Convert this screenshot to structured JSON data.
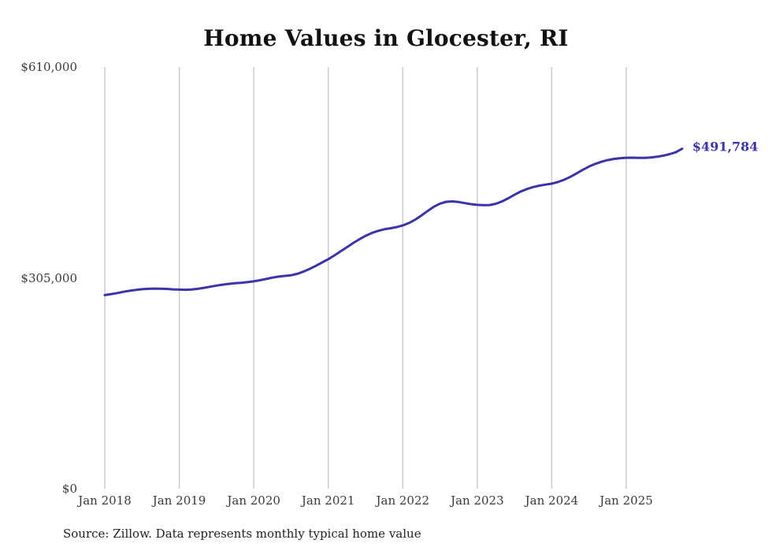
{
  "title": "Home Values in Glocester, RI",
  "source_note": "Source: Zillow. Data represents monthly typical home value",
  "end_label": "$491,784",
  "chart_data": {
    "type": "line",
    "title": "Home Values in Glocester, RI",
    "x_start": "2018-01",
    "x_interval": "month",
    "values": [
      280000,
      281500,
      283000,
      284800,
      286300,
      287600,
      288600,
      289200,
      289500,
      289400,
      289000,
      288400,
      288000,
      287800,
      288200,
      289200,
      290600,
      292200,
      293800,
      295200,
      296300,
      297200,
      297900,
      298800,
      300000,
      301600,
      303400,
      305300,
      306800,
      307800,
      308800,
      310800,
      314000,
      318000,
      322500,
      327200,
      332000,
      337500,
      343400,
      349400,
      355300,
      360800,
      365800,
      369900,
      373000,
      375200,
      376700,
      378400,
      380800,
      384300,
      389200,
      395200,
      401700,
      407800,
      412400,
      415000,
      415600,
      414700,
      413100,
      411600,
      410600,
      410100,
      410400,
      412200,
      415600,
      420200,
      425200,
      429800,
      433500,
      436400,
      438400,
      439900,
      441300,
      443600,
      446900,
      451200,
      456200,
      461300,
      466000,
      469900,
      473000,
      475400,
      477000,
      478100,
      478800,
      478900,
      478700,
      478700,
      479200,
      480200,
      481800,
      484000,
      486800,
      491784
    ],
    "latest_value": 491784,
    "latest_value_label": "$491,784",
    "xtick_labels": [
      "Jan 2018",
      "Jan 2019",
      "Jan 2020",
      "Jan 2021",
      "Jan 2022",
      "Jan 2023",
      "Jan 2024",
      "Jan 2025"
    ],
    "ytick_labels": [
      "$0",
      "$305,000",
      "$610,000"
    ],
    "ytick_values": [
      0,
      305000,
      610000
    ],
    "ylim": [
      0,
      610000
    ],
    "grid": "vertical-only",
    "legend": "none",
    "colors": {
      "line": "#3b34a8",
      "grid": "#cccccc",
      "title": "#111111",
      "axis_text": "#3a3a3a",
      "source_text": "#222222"
    }
  }
}
